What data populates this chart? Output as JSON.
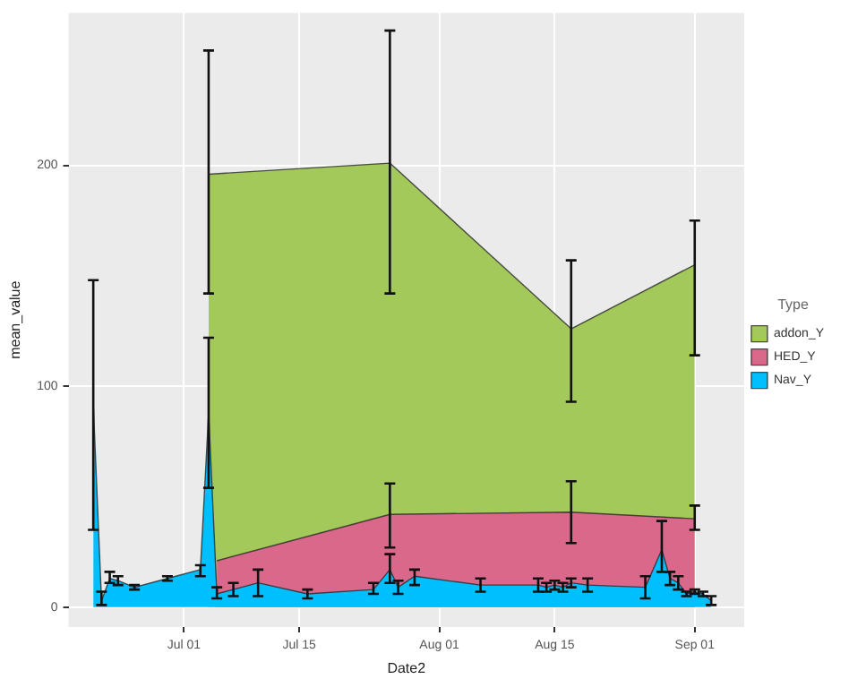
{
  "chart_data": {
    "type": "area",
    "xlabel": "Date2",
    "ylabel": "mean_value",
    "legend_title": "Type",
    "legend": "right",
    "grid": true,
    "xlim": [
      "--06-17",
      "--09-07"
    ],
    "ylim": [
      -9,
      269
    ],
    "yticks": [
      0,
      100,
      200
    ],
    "xticks": [
      {
        "value": "--07-01",
        "label": "Jul 01"
      },
      {
        "value": "--07-15",
        "label": "Jul 15"
      },
      {
        "value": "--08-01",
        "label": "Aug 01"
      },
      {
        "value": "--08-15",
        "label": "Aug 15"
      },
      {
        "value": "--09-01",
        "label": "Sep 01"
      }
    ],
    "series": [
      {
        "name": "addon_Y",
        "color": "#a3c95a",
        "x": [
          "--07-04",
          "--07-26",
          "--08-17",
          "--09-01"
        ],
        "values": [
          196,
          201,
          126,
          155
        ],
        "errors": [
          [
            142,
            252
          ],
          [
            142,
            261
          ],
          [
            93,
            157
          ],
          [
            114,
            175
          ]
        ]
      },
      {
        "name": "HED_Y",
        "color": "#d9688a",
        "x": [
          "--07-05",
          "--07-26",
          "--08-17",
          "--09-01"
        ],
        "values": [
          21,
          42,
          43,
          40
        ],
        "errors": [
          null,
          [
            27,
            56
          ],
          [
            29,
            57
          ],
          [
            35,
            46
          ]
        ]
      },
      {
        "name": "Nav_Y",
        "color": "#00bfff",
        "x": [
          "--06-20",
          "--06-21",
          "--06-22",
          "--06-23",
          "--06-25",
          "--06-29",
          "--07-03",
          "--07-04",
          "--07-05",
          "--07-07",
          "--07-10",
          "--07-16",
          "--07-24",
          "--07-26",
          "--07-27",
          "--07-29",
          "--08-06",
          "--08-13",
          "--08-14",
          "--08-15",
          "--08-16",
          "--08-17",
          "--08-19",
          "--08-26",
          "--08-28",
          "--08-29",
          "--08-30",
          "--08-31",
          "--09-01",
          "--09-02",
          "--09-03"
        ],
        "values": [
          92,
          3,
          13,
          12,
          9,
          13,
          17,
          88,
          6,
          8,
          11,
          6,
          8,
          17,
          9,
          14,
          10,
          10,
          9,
          10,
          9,
          11,
          10,
          9,
          26,
          13,
          11,
          6,
          7,
          6,
          3
        ],
        "errors": [
          [
            35,
            148
          ],
          [
            1,
            7
          ],
          [
            11,
            16
          ],
          [
            10,
            14
          ],
          [
            8,
            10
          ],
          [
            12,
            14
          ],
          [
            14,
            19
          ],
          [
            54,
            122
          ],
          [
            4,
            9
          ],
          [
            5,
            11
          ],
          [
            5,
            17
          ],
          [
            4,
            8
          ],
          [
            6,
            11
          ],
          [
            11,
            24
          ],
          [
            6,
            12
          ],
          [
            10,
            17
          ],
          [
            7,
            13
          ],
          [
            7,
            13
          ],
          [
            7,
            11
          ],
          [
            8,
            12
          ],
          [
            7,
            11
          ],
          [
            9,
            13
          ],
          [
            7,
            13
          ],
          [
            4,
            14
          ],
          [
            16,
            39
          ],
          [
            10,
            16
          ],
          [
            8,
            14
          ],
          [
            5,
            7
          ],
          [
            6,
            8
          ],
          [
            5,
            7
          ],
          [
            1,
            5
          ]
        ]
      }
    ]
  }
}
